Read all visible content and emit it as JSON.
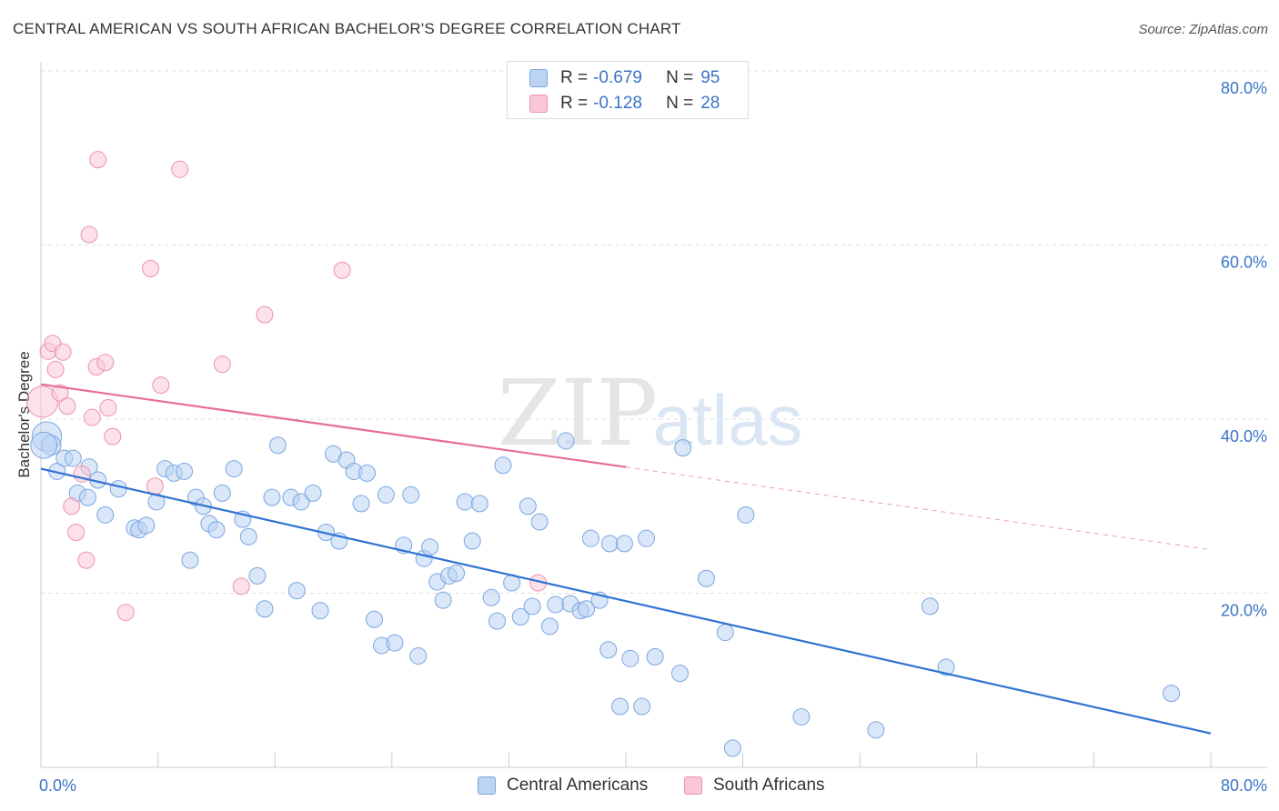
{
  "title": "CENTRAL AMERICAN VS SOUTH AFRICAN BACHELOR'S DEGREE CORRELATION CHART",
  "source": "Source: ZipAtlas.com",
  "watermark": {
    "zip": "ZIP",
    "atlas": "atlas"
  },
  "legend": {
    "r_label": "R =",
    "n_label": "N =",
    "rows": [
      {
        "name": "Central Americans",
        "r": "-0.679",
        "n": "95"
      },
      {
        "name": "South Africans",
        "r": "-0.128",
        "n": "28"
      }
    ]
  },
  "colors": {
    "blue_fill": "#bcd4f4",
    "blue_stroke": "#7aa6e0",
    "blue_line": "#2f73d2",
    "pink_fill": "#f9c8d6",
    "pink_stroke": "#eb92ad",
    "pink_line": "#e66d96",
    "axis_text": "#3a74c8",
    "grid": "#dddddd"
  },
  "chart_data": {
    "type": "scatter",
    "title": "CENTRAL AMERICAN VS SOUTH AFRICAN BACHELOR'S DEGREE CORRELATION CHART",
    "xlabel": "",
    "ylabel": "Bachelor's Degree",
    "xlim": [
      0,
      80
    ],
    "ylim": [
      0,
      80
    ],
    "x_tick_labels": [
      "0.0%",
      "80.0%"
    ],
    "y_ticks": [
      20,
      40,
      60,
      80
    ],
    "y_tick_labels": [
      "20.0%",
      "40.0%",
      "60.0%",
      "80.0%"
    ],
    "grid": true,
    "legend_position": "top-center",
    "series": [
      {
        "name": "Central Americans",
        "color": "#bcd4f4",
        "points": [
          [
            0.4,
            38,
            1.8
          ],
          [
            0.7,
            37,
            1.2
          ],
          [
            1.1,
            34,
            1
          ],
          [
            1.6,
            35.5,
            1
          ],
          [
            2.2,
            35.5,
            1
          ],
          [
            2.5,
            31.5,
            1
          ],
          [
            3.2,
            31,
            1
          ],
          [
            3.3,
            34.5,
            1
          ],
          [
            3.9,
            33,
            1
          ],
          [
            4.4,
            29,
            1
          ],
          [
            5.3,
            32,
            1
          ],
          [
            6.4,
            27.5,
            1
          ],
          [
            6.7,
            27.3,
            1
          ],
          [
            7.2,
            27.8,
            1
          ],
          [
            7.9,
            30.5,
            1
          ],
          [
            8.5,
            34.3,
            1
          ],
          [
            9.1,
            33.8,
            1
          ],
          [
            9.8,
            34,
            1
          ],
          [
            10.2,
            23.8,
            1
          ],
          [
            10.6,
            31,
            1
          ],
          [
            11.1,
            30,
            1
          ],
          [
            11.5,
            28,
            1
          ],
          [
            12.0,
            27.3,
            1
          ],
          [
            12.4,
            31.5,
            1
          ],
          [
            13.2,
            34.3,
            1
          ],
          [
            13.8,
            28.5,
            1
          ],
          [
            14.2,
            26.5,
            1
          ],
          [
            14.8,
            22,
            1
          ],
          [
            15.3,
            18.2,
            1
          ],
          [
            15.8,
            31,
            1
          ],
          [
            16.2,
            37,
            1
          ],
          [
            17.1,
            31,
            1
          ],
          [
            17.5,
            20.3,
            1
          ],
          [
            17.8,
            30.5,
            1
          ],
          [
            18.6,
            31.5,
            1
          ],
          [
            19.1,
            18,
            1
          ],
          [
            19.5,
            27,
            1
          ],
          [
            20.0,
            36,
            1
          ],
          [
            20.4,
            26,
            1
          ],
          [
            20.9,
            35.3,
            1
          ],
          [
            21.4,
            34,
            1
          ],
          [
            21.9,
            30.3,
            1
          ],
          [
            22.3,
            33.8,
            1
          ],
          [
            22.8,
            17,
            1
          ],
          [
            23.3,
            14,
            1
          ],
          [
            23.6,
            31.3,
            1
          ],
          [
            24.2,
            14.3,
            1
          ],
          [
            24.8,
            25.5,
            1
          ],
          [
            25.3,
            31.3,
            1
          ],
          [
            25.8,
            12.8,
            1
          ],
          [
            26.2,
            24,
            1
          ],
          [
            26.6,
            25.3,
            1
          ],
          [
            27.1,
            21.3,
            1
          ],
          [
            27.5,
            19.2,
            1
          ],
          [
            27.9,
            22,
            1
          ],
          [
            28.4,
            22.3,
            1
          ],
          [
            29.0,
            30.5,
            1
          ],
          [
            29.5,
            26,
            1
          ],
          [
            30.0,
            30.3,
            1
          ],
          [
            30.8,
            19.5,
            1
          ],
          [
            31.2,
            16.8,
            1
          ],
          [
            31.6,
            34.7,
            1
          ],
          [
            32.2,
            21.2,
            1
          ],
          [
            32.8,
            17.3,
            1
          ],
          [
            33.3,
            30,
            1
          ],
          [
            33.6,
            18.5,
            1
          ],
          [
            34.1,
            28.2,
            1
          ],
          [
            34.8,
            16.2,
            1
          ],
          [
            35.2,
            18.7,
            1
          ],
          [
            35.9,
            37.5,
            1
          ],
          [
            36.2,
            18.8,
            1
          ],
          [
            36.9,
            18,
            1
          ],
          [
            37.3,
            18.2,
            1
          ],
          [
            37.6,
            26.3,
            1
          ],
          [
            38.2,
            19.2,
            1
          ],
          [
            38.8,
            13.5,
            1
          ],
          [
            38.9,
            25.7,
            1
          ],
          [
            39.6,
            7,
            1
          ],
          [
            39.9,
            25.7,
            1
          ],
          [
            40.3,
            12.5,
            1
          ],
          [
            41.1,
            7,
            1
          ],
          [
            41.4,
            26.3,
            1
          ],
          [
            42.0,
            12.7,
            1
          ],
          [
            43.7,
            10.8,
            1
          ],
          [
            43.9,
            36.7,
            1
          ],
          [
            45.5,
            21.7,
            1
          ],
          [
            46.8,
            15.5,
            1
          ],
          [
            47.3,
            2.2,
            1
          ],
          [
            48.2,
            29,
            1
          ],
          [
            52.0,
            5.8,
            1
          ],
          [
            57.1,
            4.3,
            1
          ],
          [
            60.8,
            18.5,
            1
          ],
          [
            61.9,
            11.5,
            1
          ],
          [
            77.3,
            8.5,
            1
          ],
          [
            0.2,
            37,
            1.6
          ]
        ],
        "trend": {
          "x": [
            0,
            80
          ],
          "y": [
            34.3,
            3.9
          ]
        }
      },
      {
        "name": "South Africans",
        "color": "#f9c8d6",
        "points": [
          [
            0.1,
            42,
            1.9
          ],
          [
            0.5,
            47.8,
            1
          ],
          [
            0.8,
            48.7,
            1
          ],
          [
            1.0,
            45.7,
            1
          ],
          [
            1.3,
            43,
            1
          ],
          [
            1.5,
            47.7,
            1
          ],
          [
            1.8,
            41.5,
            1
          ],
          [
            2.1,
            30,
            1
          ],
          [
            2.4,
            27,
            1
          ],
          [
            2.8,
            33.7,
            1
          ],
          [
            3.1,
            23.8,
            1
          ],
          [
            3.3,
            61.2,
            1
          ],
          [
            3.5,
            40.2,
            1
          ],
          [
            3.8,
            46,
            1
          ],
          [
            3.9,
            69.8,
            1
          ],
          [
            4.4,
            46.5,
            1
          ],
          [
            4.6,
            41.3,
            1
          ],
          [
            4.9,
            38,
            1
          ],
          [
            5.8,
            17.8,
            1
          ],
          [
            7.5,
            57.3,
            1
          ],
          [
            7.8,
            32.3,
            1
          ],
          [
            8.2,
            43.9,
            1
          ],
          [
            9.5,
            68.7,
            1
          ],
          [
            12.4,
            46.3,
            1
          ],
          [
            13.7,
            20.8,
            1
          ],
          [
            15.3,
            52,
            1
          ],
          [
            20.6,
            57.1,
            1
          ],
          [
            34.0,
            21.2,
            1
          ]
        ],
        "trend": {
          "x": [
            0,
            40,
            80
          ],
          "y": [
            44.0,
            34.5,
            25.0
          ],
          "solid_until_x": 40
        }
      }
    ]
  }
}
